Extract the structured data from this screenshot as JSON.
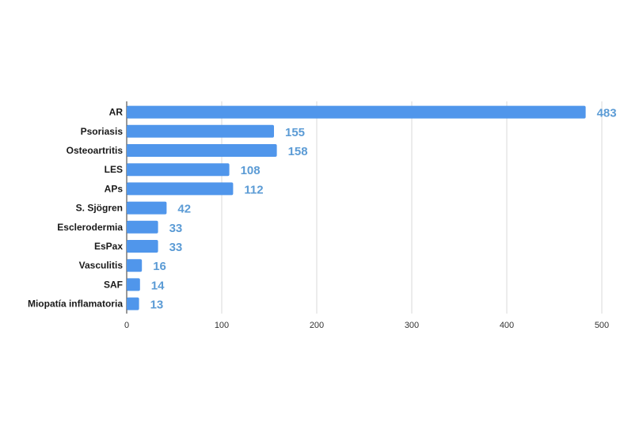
{
  "chart_data": {
    "type": "bar",
    "orientation": "horizontal",
    "categories": [
      "AR",
      "Psoriasis",
      "Osteoartritis",
      "LES",
      "APs",
      "S. Sjögren",
      "Esclerodermia",
      "EsPax",
      "Vasculitis",
      "SAF",
      "Miopatía inflamatoria"
    ],
    "values": [
      483,
      155,
      158,
      108,
      112,
      42,
      33,
      33,
      16,
      14,
      13
    ],
    "x_ticks": [
      0,
      100,
      200,
      300,
      400,
      500
    ],
    "xlim": [
      0,
      500
    ],
    "grid": true,
    "legend": "none",
    "bar_color": "#5096eb",
    "label_color": "#5b9bd5"
  }
}
